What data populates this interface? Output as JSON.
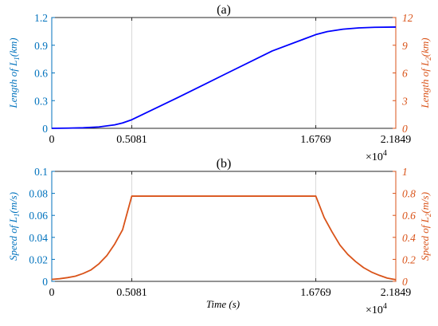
{
  "chart_data": [
    {
      "type": "line",
      "title": "(a)",
      "xlabel": "",
      "ylabel_left": "Length of L₁(km)",
      "ylabel_right": "Length of L₂(km)",
      "xlim": [
        0,
        2.1849
      ],
      "xticks": [
        "0",
        "0.5081",
        "1.6769",
        "2.1849"
      ],
      "x_exponent_label": "×10⁴",
      "ylim_left": [
        0,
        1.2
      ],
      "yticks_left": [
        "0",
        "0.3",
        "0.6",
        "0.9",
        "1.2"
      ],
      "ylim_right": [
        0,
        12
      ],
      "yticks_right": [
        "0",
        "3",
        "6",
        "9",
        "12"
      ],
      "grid": "vertical",
      "series": [
        {
          "color": "#0000FF",
          "x": [
            0,
            0.1,
            0.2,
            0.3,
            0.4,
            0.45,
            0.5081,
            0.8,
            1.1,
            1.4,
            1.6769,
            1.75,
            1.85,
            1.95,
            2.05,
            2.1849
          ],
          "y": [
            0,
            0.002,
            0.006,
            0.015,
            0.038,
            0.058,
            0.093,
            0.333,
            0.586,
            0.838,
            1.015,
            1.048,
            1.074,
            1.088,
            1.094,
            1.097
          ]
        }
      ]
    },
    {
      "type": "line",
      "title": "(b)",
      "xlabel": "Time (s)",
      "ylabel_left": "Speed of L₁(m/s)",
      "ylabel_right": "Speed of L₂(m/s)",
      "xlim": [
        0,
        2.1849
      ],
      "xticks": [
        "0",
        "0.5081",
        "1.6769",
        "2.1849"
      ],
      "x_exponent_label": "×10⁴",
      "ylim_left": [
        0,
        0.1
      ],
      "yticks_left": [
        "0",
        "0.02",
        "0.04",
        "0.06",
        "0.08",
        "0.1"
      ],
      "ylim_right": [
        0,
        1
      ],
      "yticks_right": [
        "0",
        "0.2",
        "0.4",
        "0.6",
        "0.8",
        "1"
      ],
      "grid": "vertical",
      "series": [
        {
          "color": "#D95319",
          "x": [
            0,
            0.05,
            0.1,
            0.15,
            0.2,
            0.25,
            0.3,
            0.35,
            0.4,
            0.45,
            0.5081,
            1.6769,
            1.73,
            1.78,
            1.83,
            1.88,
            1.93,
            1.98,
            2.03,
            2.08,
            2.13,
            2.1849
          ],
          "y": [
            0.0018,
            0.0024,
            0.0034,
            0.0047,
            0.0072,
            0.0105,
            0.016,
            0.0235,
            0.034,
            0.047,
            0.0775,
            0.0775,
            0.058,
            0.045,
            0.033,
            0.0245,
            0.018,
            0.0125,
            0.0085,
            0.0055,
            0.003,
            0.0015
          ]
        }
      ]
    }
  ]
}
